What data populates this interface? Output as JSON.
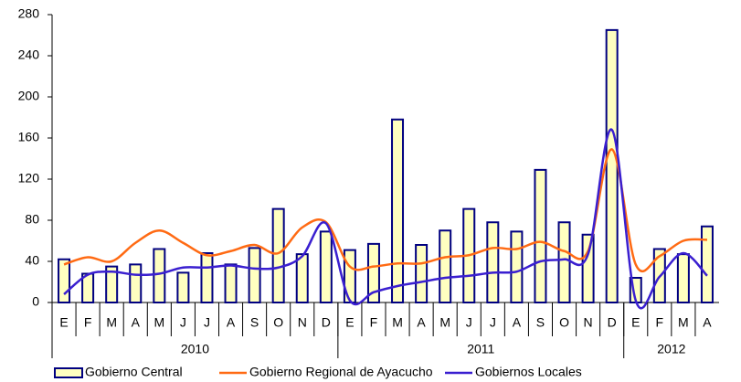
{
  "chart_data": {
    "type": "bar_line",
    "categories": [
      "E",
      "F",
      "M",
      "A",
      "M",
      "J",
      "J",
      "A",
      "S",
      "O",
      "N",
      "D",
      "E",
      "F",
      "M",
      "A",
      "M",
      "J",
      "J",
      "A",
      "S",
      "O",
      "N",
      "D",
      "E",
      "F",
      "M",
      "A"
    ],
    "x_groups": [
      {
        "label": "2010",
        "span": 12
      },
      {
        "label": "2011",
        "span": 12
      },
      {
        "label": "2012",
        "span": 4
      }
    ],
    "ylim": [
      0,
      280
    ],
    "yticks": [
      0,
      40,
      80,
      120,
      160,
      200,
      240,
      280
    ],
    "grid": false,
    "legend": "bottom",
    "series": [
      {
        "name": "Gobierno Central",
        "kind": "bar",
        "color": "#ffffc0",
        "edge_color": "#000080",
        "values": [
          42,
          28,
          35,
          37,
          52,
          29,
          48,
          37,
          53,
          91,
          47,
          69,
          51,
          57,
          178,
          56,
          70,
          91,
          78,
          69,
          129,
          78,
          66,
          265,
          24,
          52,
          47,
          74
        ]
      },
      {
        "name": "Gobierno Regional de Ayacucho",
        "kind": "line",
        "color": "#ff6a13",
        "values": [
          37,
          44,
          40,
          58,
          70,
          58,
          46,
          50,
          56,
          48,
          73,
          78,
          35,
          35,
          38,
          38,
          44,
          46,
          53,
          52,
          59,
          50,
          50,
          149,
          37,
          45,
          60,
          61
        ]
      },
      {
        "name": "Gobiernos Locales",
        "kind": "line",
        "color": "#3a1fd0",
        "values": [
          8,
          27,
          30,
          27,
          28,
          34,
          34,
          36,
          33,
          34,
          45,
          77,
          2,
          10,
          16,
          20,
          24,
          26,
          29,
          30,
          40,
          42,
          47,
          168,
          2,
          25,
          48,
          26
        ]
      }
    ]
  }
}
